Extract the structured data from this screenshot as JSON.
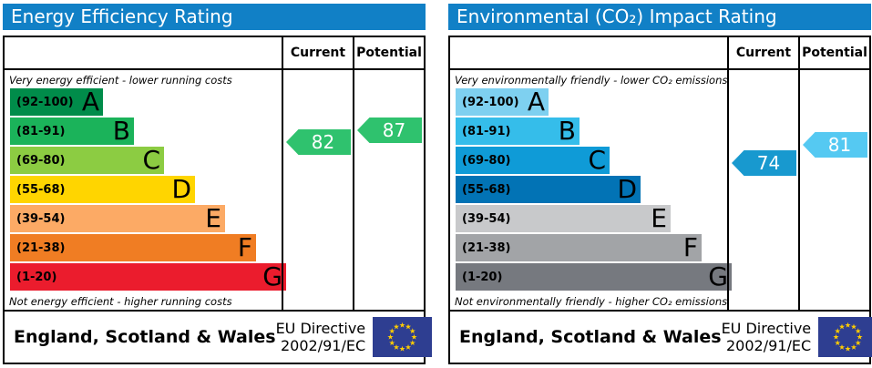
{
  "colors": {
    "header_bar": "#1180c6",
    "eu_flag_blue": "#2e3e91",
    "eu_star_yellow": "#ffcc00"
  },
  "chart_data": [
    {
      "type": "bar",
      "variant": "epc-rating-scale",
      "title": "Energy Efficiency Rating",
      "column_headers": {
        "current": "Current",
        "potential": "Potential"
      },
      "top_caption": "Very energy efficient - lower running costs",
      "bottom_caption": "Not energy efficient - higher running costs",
      "bands": [
        {
          "letter": "A",
          "range_label": "(92-100)",
          "min": 92,
          "max": 100,
          "color": "#008c4a"
        },
        {
          "letter": "B",
          "range_label": "(81-91)",
          "min": 81,
          "max": 91,
          "color": "#1bb35a"
        },
        {
          "letter": "C",
          "range_label": "(69-80)",
          "min": 69,
          "max": 80,
          "color": "#8ccc42"
        },
        {
          "letter": "D",
          "range_label": "(55-68)",
          "min": 55,
          "max": 68,
          "color": "#ffd500"
        },
        {
          "letter": "E",
          "range_label": "(39-54)",
          "min": 39,
          "max": 54,
          "color": "#fcaa65"
        },
        {
          "letter": "F",
          "range_label": "(21-38)",
          "min": 21,
          "max": 38,
          "color": "#f07d23"
        },
        {
          "letter": "G",
          "range_label": "(1-20)",
          "min": 1,
          "max": 20,
          "color": "#eb1c2d"
        }
      ],
      "ratings": {
        "current": {
          "value": 82,
          "color": "#2fc26e"
        },
        "potential": {
          "value": 87,
          "color": "#2fc26e"
        }
      },
      "footer": {
        "region": "England, Scotland & Wales",
        "directive_lines": [
          "EU Directive",
          "2002/91/EC"
        ]
      }
    },
    {
      "type": "bar",
      "variant": "epc-rating-scale",
      "title": "Environmental (CO₂) Impact Rating",
      "column_headers": {
        "current": "Current",
        "potential": "Potential"
      },
      "top_caption": "Very environmentally friendly - lower CO₂ emissions",
      "bottom_caption": "Not environmentally friendly - higher CO₂ emissions",
      "bands": [
        {
          "letter": "A",
          "range_label": "(92-100)",
          "min": 92,
          "max": 100,
          "color": "#7ed0f0"
        },
        {
          "letter": "B",
          "range_label": "(81-91)",
          "min": 81,
          "max": 91,
          "color": "#35bdea"
        },
        {
          "letter": "C",
          "range_label": "(69-80)",
          "min": 69,
          "max": 80,
          "color": "#0f9bd7"
        },
        {
          "letter": "D",
          "range_label": "(55-68)",
          "min": 55,
          "max": 68,
          "color": "#0273b5"
        },
        {
          "letter": "E",
          "range_label": "(39-54)",
          "min": 39,
          "max": 54,
          "color": "#c8c9cb"
        },
        {
          "letter": "F",
          "range_label": "(21-38)",
          "min": 21,
          "max": 38,
          "color": "#a2a4a7"
        },
        {
          "letter": "G",
          "range_label": "(1-20)",
          "min": 1,
          "max": 20,
          "color": "#76797f"
        }
      ],
      "ratings": {
        "current": {
          "value": 74,
          "color": "#1899cf"
        },
        "potential": {
          "value": 81,
          "color": "#55c9f2"
        }
      },
      "footer": {
        "region": "England, Scotland & Wales",
        "directive_lines": [
          "EU Directive",
          "2002/91/EC"
        ]
      }
    }
  ]
}
